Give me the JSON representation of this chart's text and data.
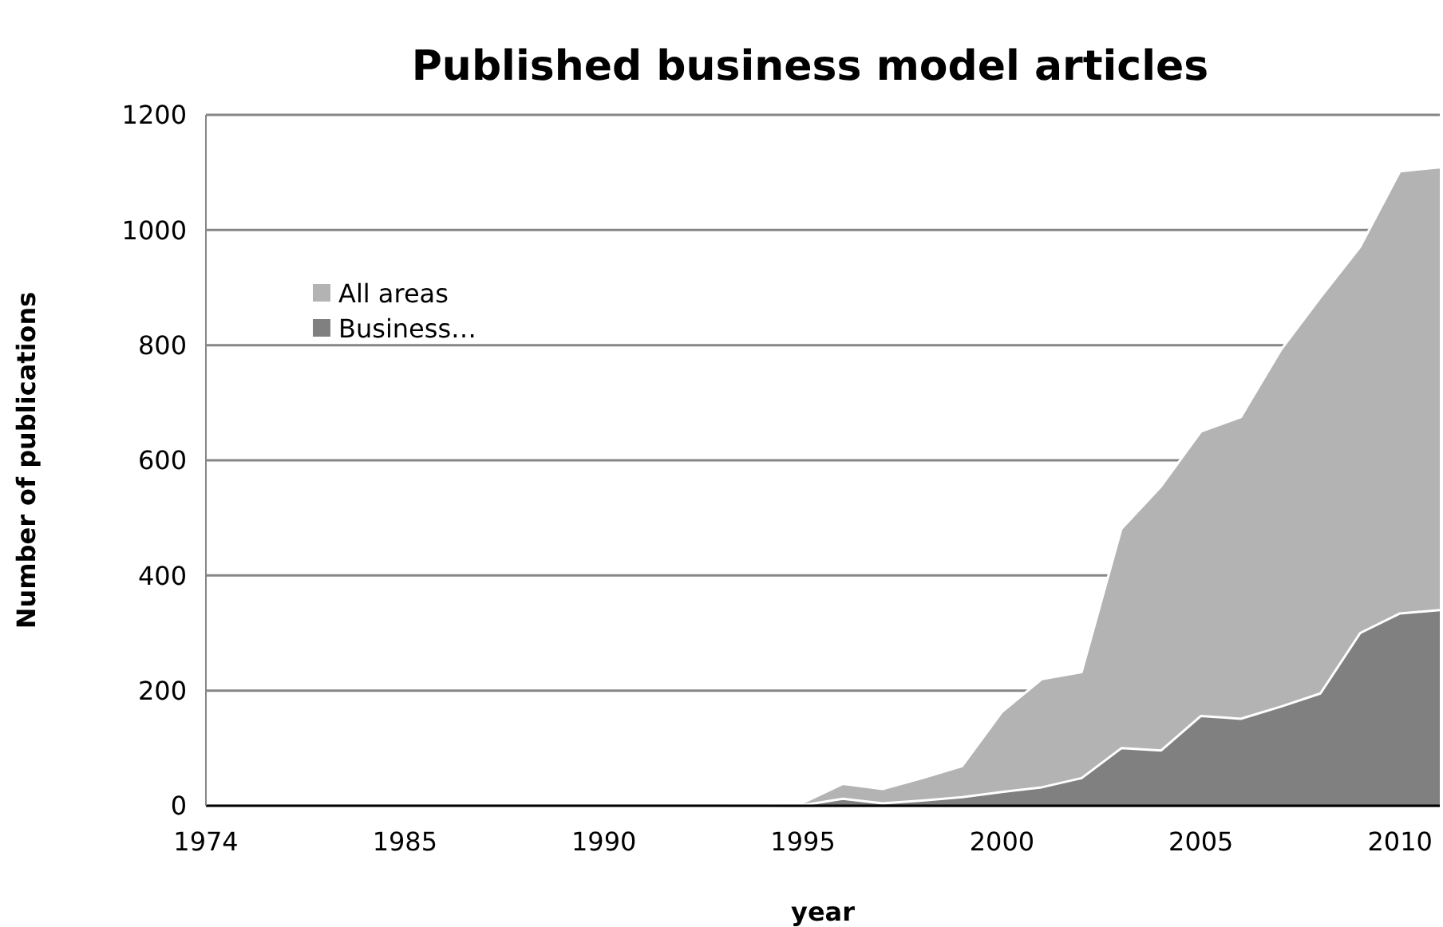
{
  "chart_data": {
    "type": "area",
    "title": "Published business model articles",
    "xlabel": "year",
    "ylabel": "Number of publications",
    "categories": [
      "1974",
      null,
      null,
      null,
      null,
      "1985",
      null,
      null,
      null,
      null,
      "1990",
      null,
      null,
      null,
      null,
      "1995",
      null,
      null,
      null,
      null,
      "2000",
      null,
      null,
      null,
      null,
      "2005",
      null,
      null,
      null,
      null,
      "2010",
      null
    ],
    "series": [
      {
        "name": "All areas",
        "color": "#b3b3b3",
        "values": [
          0,
          0,
          0,
          0,
          0,
          0,
          0,
          0,
          0,
          0,
          0,
          0,
          0,
          0,
          3,
          5,
          38,
          29,
          48,
          69,
          163,
          220,
          232,
          481,
          555,
          650,
          675,
          791,
          883,
          971,
          1102,
          1109
        ]
      },
      {
        "name": "Business…",
        "color": "#808080",
        "values": [
          0,
          0,
          0,
          0,
          0,
          0,
          0,
          0,
          0,
          0,
          0,
          0,
          0,
          0,
          0,
          1,
          12,
          4,
          9,
          15,
          24,
          32,
          48,
          100,
          96,
          156,
          151,
          172,
          195,
          300,
          334,
          340
        ]
      }
    ],
    "ylim": [
      0,
      1200
    ],
    "yticks": [
      0,
      200,
      400,
      600,
      800,
      1000,
      1200
    ],
    "grid": "y",
    "legend": "top left"
  }
}
